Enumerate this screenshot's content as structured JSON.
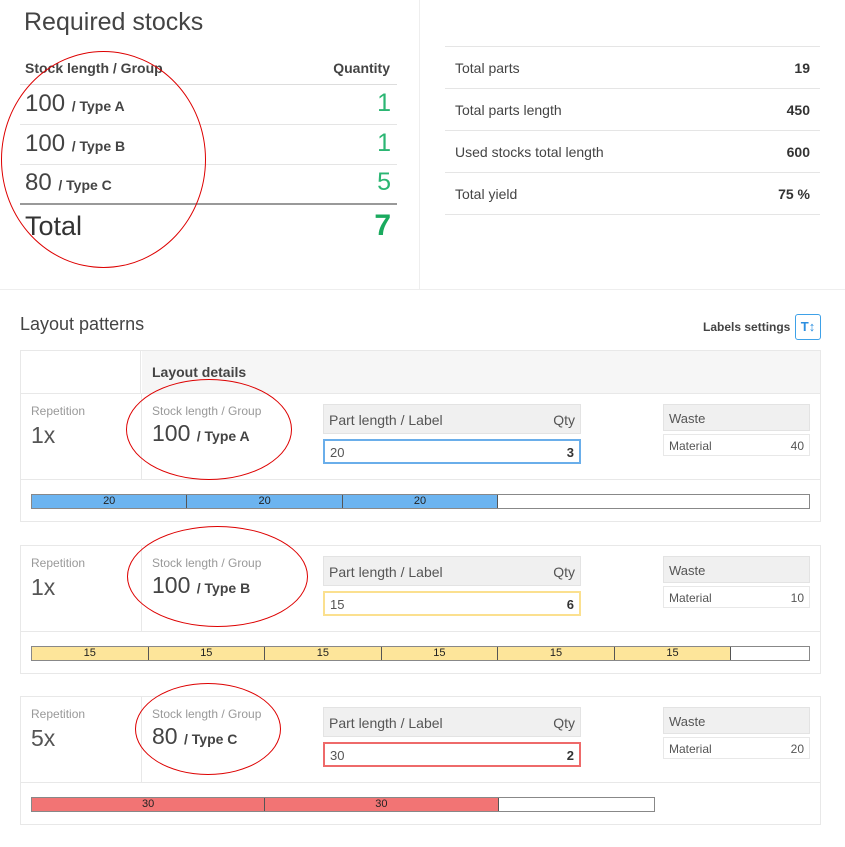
{
  "required": {
    "title": "Required stocks",
    "col_stock": "Stock length / Group",
    "col_qty": "Quantity",
    "rows": [
      {
        "length": "100",
        "group": "/ Type A",
        "qty": "1"
      },
      {
        "length": "100",
        "group": "/ Type B",
        "qty": "1"
      },
      {
        "length": "80",
        "group": "/ Type C",
        "qty": "5"
      }
    ],
    "total_label": "Total",
    "total_value": "7"
  },
  "summary": [
    {
      "label": "Total parts",
      "value": "19"
    },
    {
      "label": "Total parts length",
      "value": "450"
    },
    {
      "label": "Used stocks total length",
      "value": "600"
    },
    {
      "label": "Total yield",
      "value": "75 %"
    }
  ],
  "layout": {
    "title": "Layout patterns",
    "labels_settings": "Labels settings",
    "labels_settings_icon": "T↕",
    "details_header": "Layout details",
    "repetition_label": "Repetition",
    "stock_label": "Stock length / Group",
    "part_header": "Part length / Label",
    "qty_header": "Qty",
    "waste_header": "Waste",
    "waste_material_label": "Material",
    "patterns": [
      {
        "repetition": "1x",
        "stock_length": "100",
        "stock_group": "/ Type A",
        "part_length": "20",
        "part_qty": "3",
        "waste": "40",
        "color": "#6cb4f0",
        "border": "#6aaeea",
        "segments": [
          "20",
          "20",
          "20"
        ]
      },
      {
        "repetition": "1x",
        "stock_length": "100",
        "stock_group": "/ Type B",
        "part_length": "15",
        "part_qty": "6",
        "waste": "10",
        "color": "#fde59a",
        "border": "#fbe08f",
        "segments": [
          "15",
          "15",
          "15",
          "15",
          "15",
          "15"
        ]
      },
      {
        "repetition": "5x",
        "stock_length": "80",
        "stock_group": "/ Type C",
        "part_length": "30",
        "part_qty": "2",
        "waste": "20",
        "color": "#f27474",
        "border": "#ee6a6a",
        "segments": [
          "30",
          "30"
        ]
      }
    ]
  }
}
